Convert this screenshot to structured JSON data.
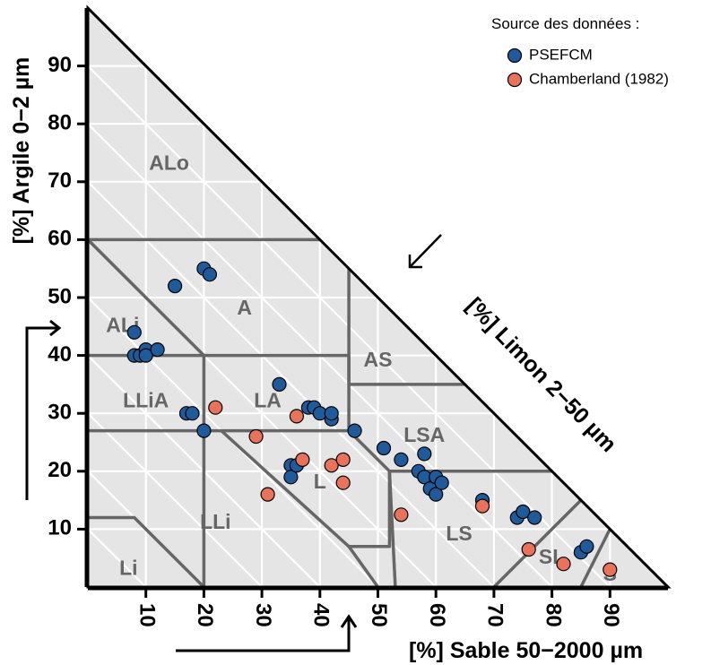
{
  "chart_data": {
    "type": "scatter",
    "subtype": "soil texture triangle",
    "xlabel": "[%] Sable 50−2000 µm",
    "ylabel": "[%] Argile 0−2 µm",
    "diag_label": "[%] Limon 2−50 µm",
    "xlim": [
      0,
      100
    ],
    "ylim": [
      0,
      100
    ],
    "x_ticks": [
      "10",
      "20",
      "30",
      "40",
      "50",
      "60",
      "70",
      "80",
      "90"
    ],
    "y_ticks": [
      "10",
      "20",
      "30",
      "40",
      "50",
      "60",
      "70",
      "80",
      "90"
    ],
    "grid": true,
    "legend_position": "top-right",
    "legend_title": "Source des données :",
    "classes": [
      "ALo",
      "A",
      "ALi",
      "AS",
      "LLiA",
      "LA",
      "LSA",
      "L",
      "LLi",
      "LS",
      "Li",
      "SL",
      "S"
    ],
    "series": [
      {
        "name": "PSEFCM",
        "color": "#1f5a9a",
        "points": [
          [
            8,
            44
          ],
          [
            8,
            40
          ],
          [
            9,
            40
          ],
          [
            10,
            41
          ],
          [
            10,
            40
          ],
          [
            12,
            41
          ],
          [
            15,
            52
          ],
          [
            20,
            55
          ],
          [
            21,
            54
          ],
          [
            17,
            30
          ],
          [
            18,
            30
          ],
          [
            20,
            27
          ],
          [
            33,
            35
          ],
          [
            35,
            21
          ],
          [
            35,
            19
          ],
          [
            36,
            21
          ],
          [
            38,
            31
          ],
          [
            39,
            31
          ],
          [
            40,
            30
          ],
          [
            42,
            29
          ],
          [
            42,
            30
          ],
          [
            46,
            27
          ],
          [
            51,
            24
          ],
          [
            54,
            22
          ],
          [
            57,
            20
          ],
          [
            58,
            19
          ],
          [
            58,
            23
          ],
          [
            59,
            17
          ],
          [
            60,
            19
          ],
          [
            60,
            16
          ],
          [
            61,
            18
          ],
          [
            68,
            15
          ],
          [
            74,
            12
          ],
          [
            75,
            13
          ],
          [
            77,
            12
          ],
          [
            85,
            6
          ],
          [
            86,
            7
          ]
        ]
      },
      {
        "name": "Chamberland (1982)",
        "color": "#e8735a",
        "points": [
          [
            22,
            31
          ],
          [
            29,
            26
          ],
          [
            31,
            16
          ],
          [
            36,
            29.5
          ],
          [
            37,
            22
          ],
          [
            42,
            21
          ],
          [
            44,
            22
          ],
          [
            44,
            18
          ],
          [
            54,
            12.5
          ],
          [
            68,
            14
          ],
          [
            76,
            6.5
          ],
          [
            82,
            4
          ],
          [
            90,
            3
          ]
        ]
      }
    ]
  }
}
